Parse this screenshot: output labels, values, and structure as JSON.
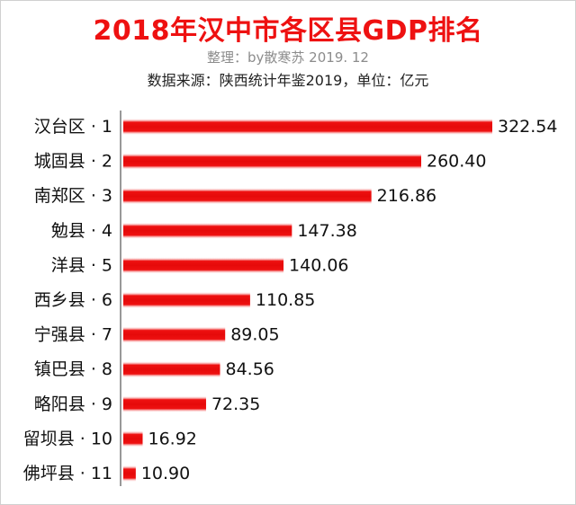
{
  "chart_data": {
    "type": "bar",
    "orientation": "horizontal",
    "title": "2018年汉中市各区县GDP排名",
    "subtitle": "整理：by散寒苏  2019. 12",
    "source": "数据来源：陕西统计年鉴2019，单位：亿元",
    "categories": [
      "汉台区 · 1",
      "城固县 · 2",
      "南郑区 · 3",
      "勉县 · 4",
      "洋县 · 5",
      "西乡县 · 6",
      "宁强县 · 7",
      "镇巴县 · 8",
      "略阳县 · 9",
      "留坝县 · 10",
      "佛坪县 · 11"
    ],
    "values": [
      322.54,
      260.4,
      216.86,
      147.38,
      140.06,
      110.85,
      89.05,
      84.56,
      72.35,
      16.92,
      10.9
    ],
    "value_labels": [
      "322.54",
      "260.40",
      "216.86",
      "147.38",
      "140.06",
      "110.85",
      "89.05",
      "84.56",
      "72.35",
      "16.92",
      "10.90"
    ],
    "xlim": [
      0,
      322.54
    ],
    "grid": false,
    "legend": "none",
    "bar_color": "#ee1111"
  }
}
